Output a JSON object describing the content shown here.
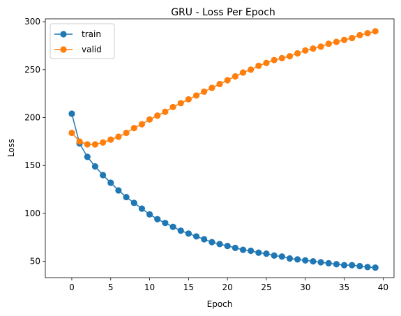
{
  "chart_data": {
    "type": "line",
    "title": "GRU - Loss Per Epoch",
    "xlabel": "Epoch",
    "ylabel": "Loss",
    "xlim": [
      -3.4,
      41.4
    ],
    "ylim": [
      33,
      303
    ],
    "xticks": [
      0,
      5,
      10,
      15,
      20,
      25,
      30,
      35,
      40
    ],
    "yticks": [
      50,
      100,
      150,
      200,
      250,
      300
    ],
    "grid": false,
    "legend_position": "top-left",
    "x": [
      0,
      1,
      2,
      3,
      4,
      5,
      6,
      7,
      8,
      9,
      10,
      11,
      12,
      13,
      14,
      15,
      16,
      17,
      18,
      19,
      20,
      21,
      22,
      23,
      24,
      25,
      26,
      27,
      28,
      29,
      30,
      31,
      32,
      33,
      34,
      35,
      36,
      37,
      38,
      39
    ],
    "series": [
      {
        "name": "train",
        "color": "#1f77b4",
        "values": [
          204,
          173,
          159,
          149,
          140,
          132,
          124,
          117,
          111,
          105,
          99,
          94,
          90,
          86,
          82,
          79,
          76,
          73,
          70,
          68,
          66,
          64,
          62,
          61,
          59,
          58,
          56,
          55,
          53,
          52,
          51,
          50,
          49,
          48,
          47,
          46,
          46,
          45,
          44,
          43.5
        ]
      },
      {
        "name": "valid",
        "color": "#ff7f0e",
        "values": [
          184,
          175,
          172,
          172,
          174,
          177,
          180,
          184,
          189,
          193,
          198,
          202,
          206,
          211,
          215,
          219,
          223,
          227,
          231,
          235,
          239,
          243,
          247,
          250,
          254,
          257,
          260,
          262,
          264,
          267,
          270,
          272,
          274,
          277,
          279,
          281,
          283,
          286,
          288,
          290
        ]
      }
    ]
  }
}
